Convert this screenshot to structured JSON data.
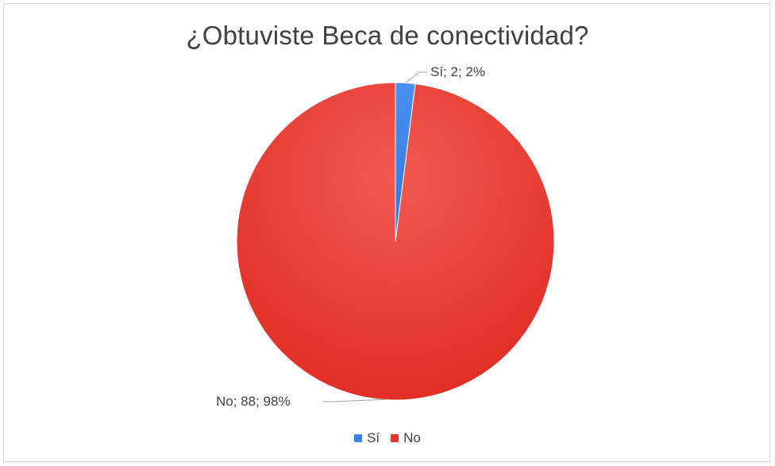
{
  "chart_data": {
    "type": "pie",
    "title": "¿Obtuviste Beca de conectividad?",
    "slices": [
      {
        "name": "Sí",
        "value": 2,
        "percent": 2,
        "label": "Sí; 2; 2%",
        "color": "#3b82f6"
      },
      {
        "name": "No",
        "value": 88,
        "percent": 98,
        "label": "No; 88; 98%",
        "color": "#e8322a"
      }
    ],
    "legend": {
      "position": "bottom",
      "entries": [
        "Sí",
        "No"
      ]
    }
  }
}
